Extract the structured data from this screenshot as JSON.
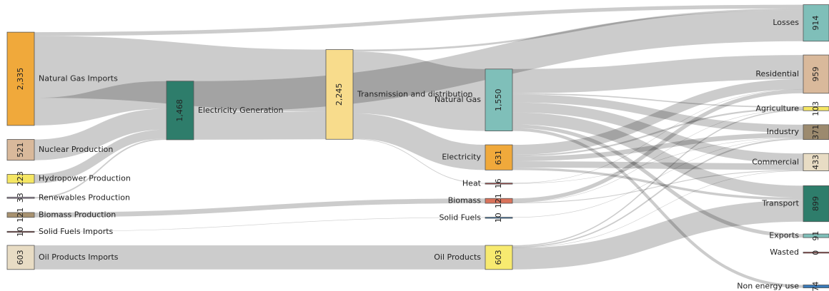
{
  "chart_data": {
    "type": "sankey",
    "nodes": [
      {
        "name": "Natural Gas Imports",
        "value": 2335,
        "value_label": "2,335",
        "color": "#f0a93b"
      },
      {
        "name": "Nuclear Production",
        "value": 521,
        "color": "#d9b99b"
      },
      {
        "name": "Hydropower Production",
        "value": 223,
        "color": "#f5e663"
      },
      {
        "name": "Renewables Production",
        "value": 33,
        "color": "#9e8fa6"
      },
      {
        "name": "Biomass Production",
        "value": 121,
        "color": "#a89270"
      },
      {
        "name": "Solid Fuels Imports",
        "value": 10,
        "color": "#8b4a4a"
      },
      {
        "name": "Oil Products Imports",
        "value": 603,
        "color": "#e8dcc4"
      },
      {
        "name": "Electricity Generation",
        "value": 1468,
        "value_label": "1,468",
        "color": "#2e7d6b"
      },
      {
        "name": "Transmission and distribution",
        "value": 2245,
        "value_label": "2,245",
        "color": "#f8dc8c"
      },
      {
        "name": "Natural Gas",
        "value": 1550,
        "value_label": "1,550",
        "color": "#7fbfb9"
      },
      {
        "name": "Electricity",
        "value": 631,
        "color": "#f0a93b"
      },
      {
        "name": "Heat",
        "value": 16,
        "color": "#b04a4a"
      },
      {
        "name": "Biomass",
        "value": 121,
        "color": "#d9725a"
      },
      {
        "name": "Solid Fuels",
        "value": 10,
        "color": "#3a7ab8"
      },
      {
        "name": "Oil Products",
        "value": 603,
        "color": "#f7ea70"
      },
      {
        "name": "Losses",
        "value": 914,
        "color": "#7fbfb9"
      },
      {
        "name": "Residential",
        "value": 959,
        "color": "#d9b99b"
      },
      {
        "name": "Agriculture",
        "value": 103,
        "color": "#f5e663"
      },
      {
        "name": "Industry",
        "value": 371,
        "color": "#9c8a6e"
      },
      {
        "name": "Commercial",
        "value": 433,
        "color": "#e8dcc4"
      },
      {
        "name": "Transport",
        "value": 899,
        "color": "#2e7d6b"
      },
      {
        "name": "Exports",
        "value": 91,
        "color": "#7fbfb9"
      },
      {
        "name": "Wasted",
        "value": 0,
        "color": "#b04a4a"
      },
      {
        "name": "Non energy use",
        "value": 74,
        "color": "#3a7ab8"
      }
    ],
    "links": [
      {
        "source": "Natural Gas Imports",
        "target": "Losses",
        "value": 94
      },
      {
        "source": "Natural Gas Imports",
        "target": "Transmission and distribution",
        "value": 1550
      },
      {
        "source": "Natural Gas Imports",
        "target": "Electricity Generation",
        "value": 691
      },
      {
        "source": "Nuclear Production",
        "target": "Electricity Generation",
        "value": 521
      },
      {
        "source": "Hydropower Production",
        "target": "Electricity Generation",
        "value": 223
      },
      {
        "source": "Renewables Production",
        "target": "Electricity Generation",
        "value": 33
      },
      {
        "source": "Biomass Production",
        "target": "Biomass",
        "value": 121
      },
      {
        "source": "Solid Fuels Imports",
        "target": "Solid Fuels",
        "value": 10
      },
      {
        "source": "Oil Products Imports",
        "target": "Oil Products",
        "value": 603
      },
      {
        "source": "Electricity Generation",
        "target": "Losses",
        "value": 772
      },
      {
        "source": "Electricity Generation",
        "target": "Transmission and distribution",
        "value": 695
      },
      {
        "source": "Transmission and distribution",
        "target": "Losses",
        "value": 48
      },
      {
        "source": "Transmission and distribution",
        "target": "Natural Gas",
        "value": 1550
      },
      {
        "source": "Transmission and distribution",
        "target": "Electricity",
        "value": 631
      },
      {
        "source": "Transmission and distribution",
        "target": "Heat",
        "value": 16
      },
      {
        "source": "Natural Gas",
        "target": "Residential",
        "value": 605
      },
      {
        "source": "Natural Gas",
        "target": "Agriculture",
        "value": 30
      },
      {
        "source": "Natural Gas",
        "target": "Industry",
        "value": 200
      },
      {
        "source": "Natural Gas",
        "target": "Commercial",
        "value": 250
      },
      {
        "source": "Natural Gas",
        "target": "Transport",
        "value": 300
      },
      {
        "source": "Natural Gas",
        "target": "Exports",
        "value": 91
      },
      {
        "source": "Natural Gas",
        "target": "Non energy use",
        "value": 74
      },
      {
        "source": "Electricity",
        "target": "Residential",
        "value": 250
      },
      {
        "source": "Electricity",
        "target": "Agriculture",
        "value": 40
      },
      {
        "source": "Electricity",
        "target": "Industry",
        "value": 120
      },
      {
        "source": "Electricity",
        "target": "Commercial",
        "value": 160
      },
      {
        "source": "Electricity",
        "target": "Transport",
        "value": 61
      },
      {
        "source": "Heat",
        "target": "Residential",
        "value": 8
      },
      {
        "source": "Heat",
        "target": "Industry",
        "value": 8
      },
      {
        "source": "Biomass",
        "target": "Residential",
        "value": 96
      },
      {
        "source": "Biomass",
        "target": "Agriculture",
        "value": 5
      },
      {
        "source": "Biomass",
        "target": "Commercial",
        "value": 20
      },
      {
        "source": "Solid Fuels",
        "target": "Industry",
        "value": 10
      },
      {
        "source": "Oil Products",
        "target": "Agriculture",
        "value": 28
      },
      {
        "source": "Oil Products",
        "target": "Industry",
        "value": 33
      },
      {
        "source": "Oil Products",
        "target": "Commercial",
        "value": 4
      },
      {
        "source": "Oil Products",
        "target": "Transport",
        "value": 538
      }
    ]
  }
}
